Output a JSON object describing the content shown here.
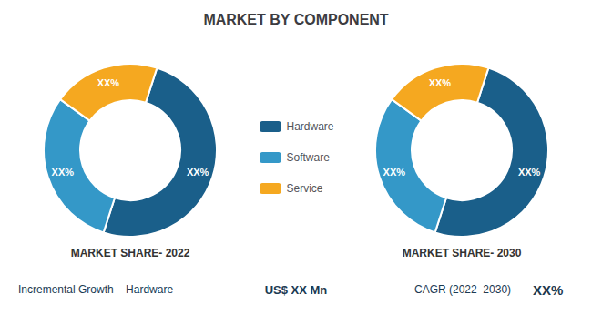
{
  "chart_data": [
    {
      "type": "pie",
      "title": "MARKET BY COMPONENT",
      "subtitle": "MARKET SHARE- 2022",
      "categories": [
        "Hardware",
        "Software",
        "Service"
      ],
      "values": [
        50,
        30,
        20
      ],
      "value_labels": [
        "XX%",
        "XX%",
        "XX%"
      ],
      "colors": [
        "#1a5f8a",
        "#3498c8",
        "#f5a820"
      ],
      "data_labels": true,
      "legend": "center",
      "annotations": [
        "Incremental Growth – Hardware",
        "US$ XX Mn",
        "CAGR (2022–2030)",
        "XX%"
      ]
    },
    {
      "type": "pie",
      "subtitle": "MARKET SHARE- 2030",
      "categories": [
        "Hardware",
        "Software",
        "Service"
      ],
      "values": [
        50,
        30,
        20
      ],
      "value_labels": [
        "XX%",
        "XX%",
        "XX%"
      ],
      "colors": [
        "#1a5f8a",
        "#3498c8",
        "#f5a820"
      ],
      "data_labels": true
    }
  ]
}
